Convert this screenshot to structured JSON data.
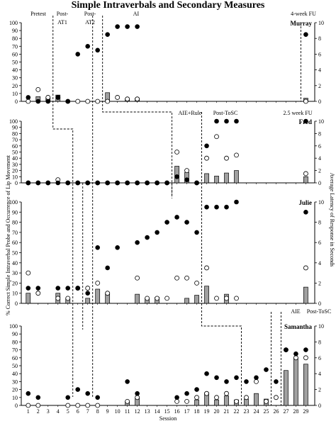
{
  "title": "Simple Intraverbals and Secondary Measures",
  "y_left_label": "% Correct Simple Intraverbal Probe and Occurrence of Lip Movement",
  "y_right_label": "Average Latency of Response in Seconds",
  "x_label": "Session",
  "sessions": [
    "1",
    "2",
    "3",
    "4",
    "5",
    "6",
    "7",
    "8",
    "9",
    "10",
    "11",
    "12",
    "13",
    "14",
    "15",
    "16",
    "17",
    "18",
    "19",
    "20",
    "21",
    "22",
    "23",
    "24",
    "25",
    "26",
    "27",
    "28",
    "29"
  ],
  "left_ticks": [
    "0",
    "10",
    "20",
    "30",
    "40",
    "50",
    "60",
    "70",
    "80",
    "90",
    "100"
  ],
  "right_ticks": [
    "0",
    "2",
    "4",
    "6",
    "8",
    "10"
  ],
  "chart_data": [
    {
      "type": "bar",
      "participant": "Murray",
      "phases": [
        "Pretest",
        "Post-AT1",
        "Post-AT2",
        "AI",
        "4-week FU"
      ],
      "x": [
        1,
        2,
        3,
        4,
        5,
        6,
        7,
        8,
        9,
        10,
        11,
        12,
        13,
        14,
        15,
        16,
        17,
        18,
        19,
        20,
        21,
        22,
        23,
        24,
        25,
        26,
        27,
        28,
        29
      ],
      "lip_movement_pct": [
        0,
        6,
        5,
        8,
        0,
        0,
        0,
        0,
        11,
        0,
        3,
        4,
        null,
        null,
        null,
        null,
        null,
        null,
        null,
        null,
        null,
        null,
        null,
        null,
        null,
        null,
        null,
        null,
        4
      ],
      "percent_correct": [
        5,
        0,
        0,
        5,
        0,
        60,
        70,
        65,
        85,
        95,
        95,
        95,
        null,
        null,
        null,
        null,
        null,
        null,
        null,
        null,
        null,
        null,
        null,
        null,
        null,
        null,
        null,
        null,
        85
      ],
      "latency_seconds": [
        0,
        1.5,
        0.5,
        0.5,
        0,
        0,
        0,
        0,
        0,
        0.5,
        0.3,
        0.3,
        null,
        null,
        null,
        null,
        null,
        null,
        null,
        null,
        null,
        null,
        null,
        null,
        null,
        null,
        null,
        null,
        0
      ]
    },
    {
      "type": "bar",
      "participant": "Fred",
      "phases": [
        "AIE+Rule",
        "Post-ToSC",
        "2.5 week FU"
      ],
      "x": [
        1,
        2,
        3,
        4,
        5,
        6,
        7,
        8,
        9,
        10,
        11,
        12,
        13,
        14,
        15,
        16,
        17,
        18,
        19,
        20,
        21,
        22,
        23,
        24,
        25,
        26,
        27,
        28,
        29
      ],
      "lip_movement_pct": [
        0,
        0,
        0,
        0,
        0,
        0,
        0,
        0,
        0,
        0,
        0,
        0,
        0,
        0,
        0,
        27,
        17,
        0,
        15,
        11,
        16,
        20,
        null,
        null,
        null,
        null,
        null,
        null,
        10
      ],
      "percent_correct": [
        0,
        0,
        0,
        0,
        0,
        0,
        0,
        0,
        0,
        0,
        0,
        0,
        0,
        0,
        0,
        10,
        5,
        0,
        60,
        100,
        100,
        100,
        null,
        null,
        null,
        null,
        null,
        null,
        100
      ],
      "latency_seconds": [
        0,
        0,
        0,
        0.5,
        0,
        0,
        0,
        0,
        0,
        0,
        0,
        0,
        0,
        0,
        0,
        5,
        2,
        0,
        4,
        7.5,
        4,
        4.5,
        null,
        null,
        null,
        null,
        null,
        null,
        1.5
      ]
    },
    {
      "type": "bar",
      "participant": "Julie",
      "x": [
        1,
        2,
        3,
        4,
        5,
        6,
        7,
        8,
        9,
        10,
        11,
        12,
        13,
        14,
        15,
        16,
        17,
        18,
        19,
        20,
        21,
        22,
        23,
        24,
        25,
        26,
        27,
        28,
        29
      ],
      "lip_movement_pct": [
        10,
        0,
        0,
        10,
        5,
        0,
        5,
        14,
        10,
        0,
        0,
        9,
        5,
        6,
        0,
        0,
        5,
        8,
        17,
        0,
        9,
        0,
        null,
        null,
        null,
        null,
        null,
        null,
        16
      ],
      "percent_correct": [
        15,
        15,
        null,
        15,
        15,
        15,
        10,
        55,
        35,
        55,
        null,
        60,
        65,
        70,
        80,
        85,
        80,
        70,
        95,
        95,
        95,
        100,
        null,
        null,
        null,
        null,
        null,
        null,
        90
      ],
      "latency_seconds": [
        3,
        1,
        null,
        0.5,
        0.5,
        1.5,
        1.5,
        2,
        1,
        null,
        null,
        2.5,
        0.5,
        0.5,
        0.5,
        2.5,
        2.5,
        2,
        3.5,
        0.5,
        0.5,
        0.5,
        null,
        null,
        null,
        null,
        null,
        null,
        3.5
      ]
    },
    {
      "type": "bar",
      "participant": "Samantha",
      "phases": [
        "AIE",
        "Post-ToSC"
      ],
      "x": [
        1,
        2,
        3,
        4,
        5,
        6,
        7,
        8,
        9,
        10,
        11,
        12,
        13,
        14,
        15,
        16,
        17,
        18,
        19,
        20,
        21,
        22,
        23,
        24,
        25,
        26,
        27,
        28,
        29
      ],
      "lip_movement_pct": [
        0,
        0,
        0,
        0,
        0,
        0,
        0,
        0,
        0,
        0,
        5,
        9,
        0,
        0,
        0,
        0,
        0,
        7,
        16,
        7,
        12,
        7,
        8,
        15,
        8,
        0,
        44,
        59,
        52
      ],
      "percent_correct": [
        15,
        10,
        null,
        null,
        10,
        20,
        15,
        10,
        null,
        null,
        30,
        15,
        null,
        null,
        null,
        10,
        15,
        20,
        40,
        35,
        30,
        35,
        30,
        35,
        45,
        30,
        70,
        65,
        70
      ],
      "latency_seconds": [
        0,
        0,
        null,
        null,
        0,
        0,
        0,
        0,
        null,
        null,
        0.5,
        1,
        null,
        null,
        null,
        0.5,
        0.5,
        1,
        1.5,
        1,
        1.5,
        0.5,
        1,
        3,
        0.5,
        1,
        7,
        6,
        6
      ]
    }
  ]
}
